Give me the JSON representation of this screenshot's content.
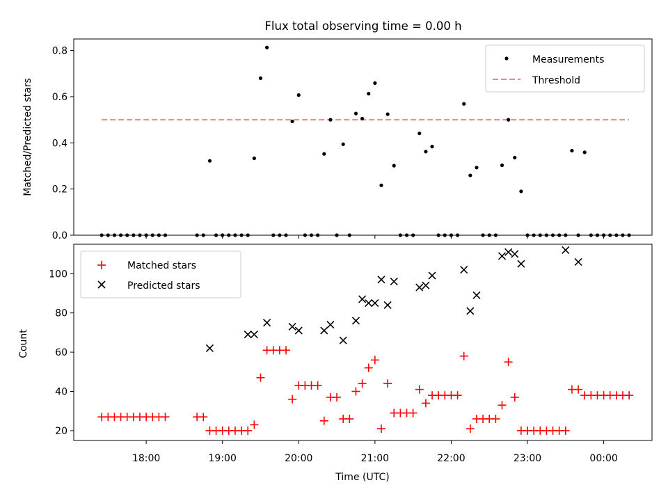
{
  "figure": {
    "title": "Flux total observing time = 0.00 h"
  },
  "chart_data": [
    {
      "type": "scatter",
      "title": "Flux total observing time = 0.00 h",
      "xlabel": "",
      "ylabel": "Matched/Predicted stars",
      "xlim": [
        "17:03",
        "00:38"
      ],
      "ylim": [
        0,
        0.85
      ],
      "yticks": [
        0.0,
        0.2,
        0.4,
        0.6,
        0.8
      ],
      "ytick_labels": [
        "0.0",
        "0.2",
        "0.4",
        "0.6",
        "0.8"
      ],
      "legend": {
        "placement": "upper right",
        "entries": [
          "Measurements",
          "Threshold"
        ]
      },
      "series": [
        {
          "name": "Measurements",
          "marker": "dot",
          "color": "#000000",
          "x": [
            "17:25",
            "17:30",
            "17:35",
            "17:40",
            "17:45",
            "17:50",
            "17:55",
            "18:00",
            "18:05",
            "18:10",
            "18:15",
            "18:40",
            "18:45",
            "18:50",
            "18:55",
            "19:00",
            "19:05",
            "19:10",
            "19:15",
            "19:20",
            "19:25",
            "19:30",
            "19:35",
            "19:40",
            "19:45",
            "19:50",
            "19:55",
            "20:00",
            "20:05",
            "20:10",
            "20:15",
            "20:20",
            "20:25",
            "20:30",
            "20:35",
            "20:40",
            "20:45",
            "20:50",
            "20:55",
            "21:00",
            "21:05",
            "21:10",
            "21:15",
            "21:20",
            "21:25",
            "21:30",
            "21:35",
            "21:40",
            "21:45",
            "21:50",
            "21:55",
            "22:00",
            "22:05",
            "22:10",
            "22:15",
            "22:20",
            "22:25",
            "22:30",
            "22:35",
            "22:40",
            "22:45",
            "22:50",
            "22:55",
            "23:00",
            "23:05",
            "23:10",
            "23:15",
            "23:20",
            "23:25",
            "23:30",
            "23:35",
            "23:40",
            "23:45",
            "23:50",
            "23:55",
            "00:00",
            "00:05",
            "00:10",
            "00:15",
            "00:20"
          ],
          "y": [
            0,
            0,
            0,
            0,
            0,
            0,
            0,
            0,
            0,
            0,
            0,
            0,
            0,
            0.322,
            0,
            0,
            0,
            0,
            0,
            0,
            0.333,
            0.68,
            0.813,
            0,
            0,
            0,
            0.493,
            0.607,
            0,
            0,
            0,
            0.352,
            0.5,
            0,
            0.394,
            0,
            0.527,
            0.505,
            0.613,
            0.659,
            0.216,
            0.524,
            0.301,
            0,
            0,
            0,
            0.441,
            0.362,
            0.384,
            0,
            0,
            0,
            0,
            0.569,
            0.259,
            0.293,
            0,
            0,
            0,
            0.303,
            0.5,
            0.336,
            0.19,
            0,
            0,
            0,
            0,
            0,
            0,
            0,
            0.366,
            0,
            0.359,
            0,
            0,
            0,
            0,
            0,
            0,
            0
          ]
        },
        {
          "name": "Threshold",
          "style": "dashed",
          "color": "#ff7f7f",
          "x": [
            "17:25",
            "00:20"
          ],
          "y": [
            0.5,
            0.5
          ]
        }
      ]
    },
    {
      "type": "scatter",
      "xlabel": "Time (UTC)",
      "ylabel": "Count",
      "xlim": [
        "17:03",
        "00:38"
      ],
      "ylim": [
        15,
        115
      ],
      "xticks": [
        "18:00",
        "19:00",
        "20:00",
        "21:00",
        "22:00",
        "23:00",
        "00:00"
      ],
      "yticks": [
        20,
        40,
        60,
        80,
        100
      ],
      "ytick_labels": [
        "20",
        "40",
        "60",
        "80",
        "100"
      ],
      "legend": {
        "placement": "upper left",
        "entries": [
          "Matched stars",
          "Predicted stars"
        ]
      },
      "series": [
        {
          "name": "Matched stars",
          "marker": "plus",
          "color": "#ff0000",
          "x": [
            "17:25",
            "17:30",
            "17:35",
            "17:40",
            "17:45",
            "17:50",
            "17:55",
            "18:00",
            "18:05",
            "18:10",
            "18:15",
            "18:40",
            "18:45",
            "18:50",
            "18:55",
            "19:00",
            "19:05",
            "19:10",
            "19:15",
            "19:20",
            "19:25",
            "19:30",
            "19:35",
            "19:40",
            "19:45",
            "19:50",
            "19:55",
            "20:00",
            "20:05",
            "20:10",
            "20:15",
            "20:20",
            "20:25",
            "20:30",
            "20:35",
            "20:40",
            "20:45",
            "20:50",
            "20:55",
            "21:00",
            "21:05",
            "21:10",
            "21:15",
            "21:20",
            "21:25",
            "21:30",
            "21:35",
            "21:40",
            "21:45",
            "21:50",
            "21:55",
            "22:00",
            "22:05",
            "22:10",
            "22:15",
            "22:20",
            "22:25",
            "22:30",
            "22:35",
            "22:40",
            "22:45",
            "22:50",
            "22:55",
            "23:00",
            "23:05",
            "23:10",
            "23:15",
            "23:20",
            "23:25",
            "23:30",
            "23:35",
            "23:40",
            "23:45",
            "23:50",
            "23:55",
            "00:00",
            "00:05",
            "00:10",
            "00:15",
            "00:20"
          ],
          "y": [
            27,
            27,
            27,
            27,
            27,
            27,
            27,
            27,
            27,
            27,
            27,
            27,
            27,
            20,
            20,
            20,
            20,
            20,
            20,
            20,
            23,
            47,
            61,
            61,
            61,
            61,
            36,
            43,
            43,
            43,
            43,
            25,
            37,
            37,
            26,
            26,
            40,
            44,
            52,
            56,
            21,
            44,
            29,
            29,
            29,
            29,
            41,
            34,
            38,
            38,
            38,
            38,
            38,
            58,
            21,
            26,
            26,
            26,
            26,
            33,
            55,
            37,
            20,
            20,
            20,
            20,
            20,
            20,
            20,
            20,
            41,
            41,
            38,
            38,
            38,
            38,
            38,
            38,
            38,
            38
          ]
        },
        {
          "name": "Predicted stars",
          "marker": "x",
          "color": "#000000",
          "x": [
            "18:50",
            "19:20",
            "19:25",
            "19:35",
            "19:55",
            "20:00",
            "20:20",
            "20:25",
            "20:35",
            "20:45",
            "20:50",
            "20:55",
            "21:00",
            "21:05",
            "21:10",
            "21:15",
            "21:35",
            "21:40",
            "21:45",
            "22:10",
            "22:15",
            "22:20",
            "22:40",
            "22:45",
            "22:50",
            "22:55",
            "23:30",
            "23:40"
          ],
          "y": [
            62,
            69,
            69,
            75,
            73,
            71,
            71,
            74,
            66,
            76,
            87,
            85,
            85,
            97,
            84,
            96,
            93,
            94,
            99,
            102,
            81,
            89,
            109,
            111,
            110,
            105,
            112,
            106
          ]
        }
      ]
    }
  ]
}
